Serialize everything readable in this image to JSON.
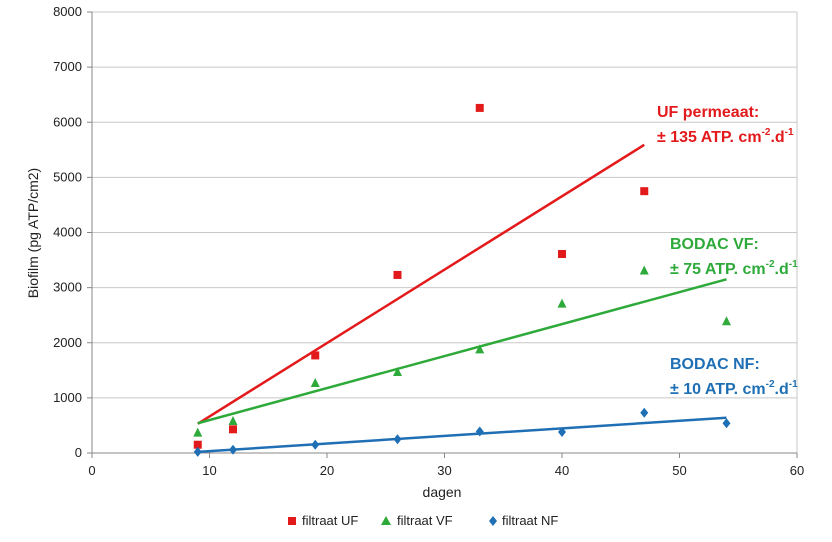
{
  "chart_data": {
    "type": "scatter",
    "xlabel": "dagen",
    "ylabel": "Biofilm (pg ATP/cm2)",
    "xlim": [
      0,
      60
    ],
    "ylim": [
      0,
      8000
    ],
    "xticks": [
      0,
      10,
      20,
      30,
      40,
      50,
      60
    ],
    "yticks": [
      0,
      1000,
      2000,
      3000,
      4000,
      5000,
      6000,
      7000,
      8000
    ],
    "grid": "horizontal",
    "legend_position": "bottom",
    "series": [
      {
        "name": "filtraat UF",
        "color": "#e31a1c",
        "marker": "square",
        "points": [
          [
            9,
            150
          ],
          [
            12,
            430
          ],
          [
            19,
            1770
          ],
          [
            26,
            3230
          ],
          [
            33,
            6260
          ],
          [
            40,
            3610
          ],
          [
            47,
            4750
          ]
        ],
        "trend": [
          [
            9,
            530
          ],
          [
            47,
            5590
          ]
        ]
      },
      {
        "name": "filtraat VF",
        "color": "#2eaa3a",
        "marker": "triangle",
        "points": [
          [
            9,
            370
          ],
          [
            12,
            580
          ],
          [
            19,
            1270
          ],
          [
            26,
            1470
          ],
          [
            33,
            1880
          ],
          [
            40,
            2710
          ],
          [
            47,
            3310
          ],
          [
            54,
            2390
          ]
        ],
        "trend": [
          [
            9,
            540
          ],
          [
            54,
            3150
          ]
        ]
      },
      {
        "name": "filtraat NF",
        "color": "#1f6fb5",
        "marker": "diamond",
        "points": [
          [
            9,
            20
          ],
          [
            12,
            60
          ],
          [
            19,
            150
          ],
          [
            26,
            250
          ],
          [
            33,
            390
          ],
          [
            40,
            380
          ],
          [
            47,
            730
          ],
          [
            54,
            540
          ]
        ],
        "trend": [
          [
            9,
            20
          ],
          [
            54,
            640
          ]
        ]
      }
    ],
    "annotations": [
      {
        "line1": "UF permeaat:",
        "line2_pre": "± 135 ATP. cm",
        "sup1": "-2",
        "mid": ".d",
        "sup2": "-1",
        "color": "#e31a1c"
      },
      {
        "line1": "BODAC VF:",
        "line2_pre": "± 75 ATP. cm",
        "sup1": "-2",
        "mid": ".d",
        "sup2": "-1",
        "color": "#2eaa3a"
      },
      {
        "line1": "BODAC NF:",
        "line2_pre": "± 10 ATP. cm",
        "sup1": "-2",
        "mid": ".d",
        "sup2": "-1",
        "color": "#1f6fb5"
      }
    ]
  }
}
